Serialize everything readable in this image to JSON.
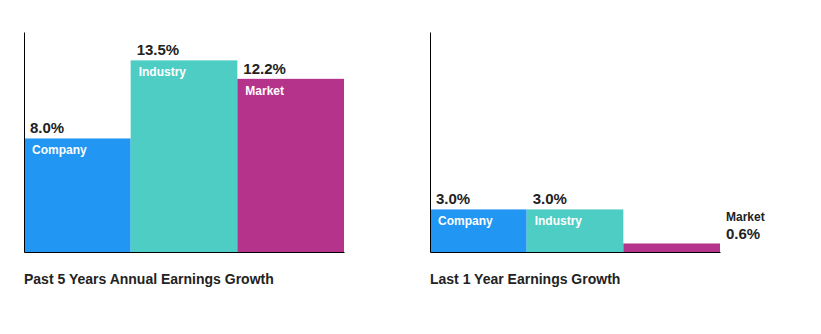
{
  "chart_data": [
    {
      "type": "bar",
      "title": "Past 5 Years Annual Earnings Growth",
      "categories": [
        "Company",
        "Industry",
        "Market"
      ],
      "values": [
        8.0,
        13.5,
        12.2
      ],
      "value_labels": [
        "8.0%",
        "13.5%",
        "12.2%"
      ],
      "colors": [
        "#2196f3",
        "#4ecdc4",
        "#b5338a"
      ],
      "ylim": [
        0,
        15.5
      ],
      "tick_labels": "x",
      "data_labels": true
    },
    {
      "type": "bar",
      "title": "Last 1 Year Earnings Growth",
      "categories": [
        "Company",
        "Industry",
        "Market"
      ],
      "values": [
        3.0,
        3.0,
        0.6
      ],
      "value_labels": [
        "3.0%",
        "3.0%",
        "0.6%"
      ],
      "colors": [
        "#2196f3",
        "#4ecdc4",
        "#b5338a"
      ],
      "ylim": [
        0,
        15.5
      ],
      "tick_labels": "x",
      "data_labels": true
    }
  ]
}
